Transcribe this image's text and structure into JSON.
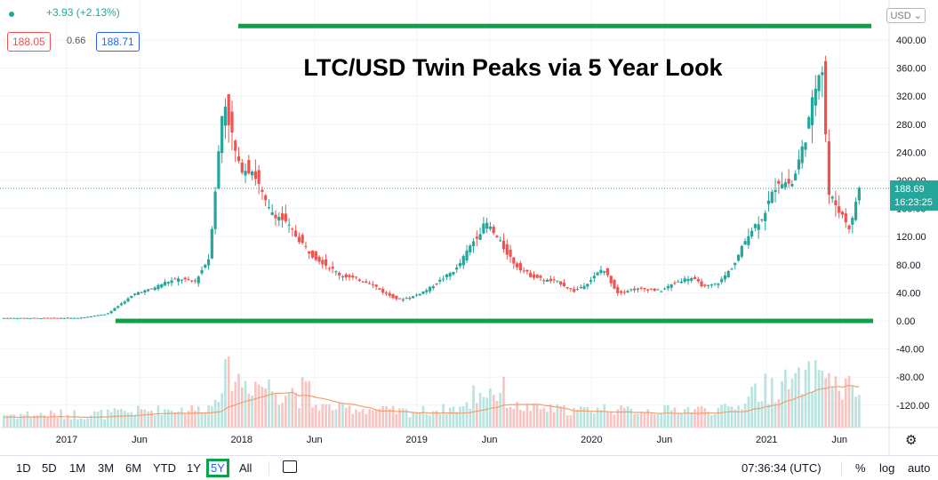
{
  "header": {
    "change": "+3.93 (+2.13%)",
    "bid": "188.05",
    "spread": "0.66",
    "ask": "188.71",
    "currency": "USD"
  },
  "price_axis": {
    "last_price": "188.69",
    "countdown": "16:23:25"
  },
  "toolbar": {
    "ranges": [
      "1D",
      "5D",
      "1M",
      "3M",
      "6M",
      "YTD",
      "1Y",
      "5Y",
      "All"
    ],
    "selected": "5Y",
    "time": "07:36:34 (UTC)",
    "percent": "%",
    "log": "log",
    "auto": "auto"
  },
  "colors": {
    "up": "#26a69a",
    "down": "#ef5350",
    "volume_ma": "#f0a070",
    "annotation": "#0ca14a",
    "label_bg": "#26a69a"
  },
  "icons": [
    "gear-icon",
    "calendar-range-icon",
    "chevron-down-icon",
    "status-dot-icon"
  ],
  "chart_data": {
    "type": "candlestick",
    "title": "LTC/USD Twin Peaks via 5 Year Look",
    "y_ticks": [
      400,
      360,
      320,
      280,
      240,
      200,
      160,
      120,
      80,
      40,
      0,
      -40,
      -80,
      -120
    ],
    "y_tick_labels": [
      "400.00",
      "360.00",
      "320.00",
      "280.00",
      "240.00",
      "200.00",
      "160.00",
      "120.00",
      "80.00",
      "40.00",
      "0.00",
      "-40.00",
      "-80.00",
      "-120.00"
    ],
    "ylim": [
      -130,
      415
    ],
    "x_labels": [
      "2017",
      "Jun",
      "2018",
      "Jun",
      "2019",
      "Jun",
      "2020",
      "Jun",
      "2021",
      "Jun"
    ],
    "x_label_dates": [
      "2017-01",
      "2017-06",
      "2018-01",
      "2018-06",
      "2019-01",
      "2019-06",
      "2020-01",
      "2020-06",
      "2021-01",
      "2021-06"
    ],
    "series_close_approx": [
      {
        "date": "2016-08",
        "close": 4
      },
      {
        "date": "2016-11",
        "close": 4
      },
      {
        "date": "2017-02",
        "close": 4
      },
      {
        "date": "2017-04",
        "close": 10
      },
      {
        "date": "2017-05",
        "close": 25
      },
      {
        "date": "2017-06",
        "close": 40
      },
      {
        "date": "2017-07",
        "close": 45
      },
      {
        "date": "2017-08",
        "close": 55
      },
      {
        "date": "2017-09",
        "close": 60
      },
      {
        "date": "2017-10",
        "close": 55
      },
      {
        "date": "2017-11",
        "close": 90
      },
      {
        "date": "2017-12",
        "close": 320
      },
      {
        "date": "2018-01",
        "close": 220
      },
      {
        "date": "2018-02",
        "close": 215
      },
      {
        "date": "2018-03",
        "close": 160
      },
      {
        "date": "2018-04",
        "close": 145
      },
      {
        "date": "2018-05",
        "close": 120
      },
      {
        "date": "2018-06",
        "close": 95
      },
      {
        "date": "2018-07",
        "close": 80
      },
      {
        "date": "2018-08",
        "close": 65
      },
      {
        "date": "2018-09",
        "close": 60
      },
      {
        "date": "2018-10",
        "close": 55
      },
      {
        "date": "2018-11",
        "close": 40
      },
      {
        "date": "2018-12",
        "close": 30
      },
      {
        "date": "2019-01",
        "close": 35
      },
      {
        "date": "2019-02",
        "close": 45
      },
      {
        "date": "2019-03",
        "close": 60
      },
      {
        "date": "2019-04",
        "close": 75
      },
      {
        "date": "2019-05",
        "close": 110
      },
      {
        "date": "2019-06",
        "close": 140
      },
      {
        "date": "2019-07",
        "close": 110
      },
      {
        "date": "2019-08",
        "close": 80
      },
      {
        "date": "2019-09",
        "close": 65
      },
      {
        "date": "2019-10",
        "close": 58
      },
      {
        "date": "2019-11",
        "close": 55
      },
      {
        "date": "2019-12",
        "close": 42
      },
      {
        "date": "2020-01",
        "close": 55
      },
      {
        "date": "2020-02",
        "close": 75
      },
      {
        "date": "2020-03",
        "close": 40
      },
      {
        "date": "2020-04",
        "close": 45
      },
      {
        "date": "2020-05",
        "close": 45
      },
      {
        "date": "2020-06",
        "close": 43
      },
      {
        "date": "2020-07",
        "close": 55
      },
      {
        "date": "2020-08",
        "close": 62
      },
      {
        "date": "2020-09",
        "close": 48
      },
      {
        "date": "2020-10",
        "close": 55
      },
      {
        "date": "2020-11",
        "close": 80
      },
      {
        "date": "2020-12",
        "close": 125
      },
      {
        "date": "2021-01",
        "close": 150
      },
      {
        "date": "2021-02",
        "close": 200
      },
      {
        "date": "2021-03",
        "close": 195
      },
      {
        "date": "2021-04",
        "close": 270
      },
      {
        "date": "2021-05",
        "close": 380
      },
      {
        "date": "2021-05b",
        "close": 180
      },
      {
        "date": "2021-06",
        "close": 165
      },
      {
        "date": "2021-07",
        "close": 130
      },
      {
        "date": "2021-07b",
        "close": 188.69
      }
    ],
    "annotations": [
      {
        "type": "horizontal_line",
        "value": 420,
        "label": "top"
      },
      {
        "type": "horizontal_line",
        "value": 0,
        "label": "bottom"
      }
    ],
    "volume_panel": true,
    "grid": true
  }
}
